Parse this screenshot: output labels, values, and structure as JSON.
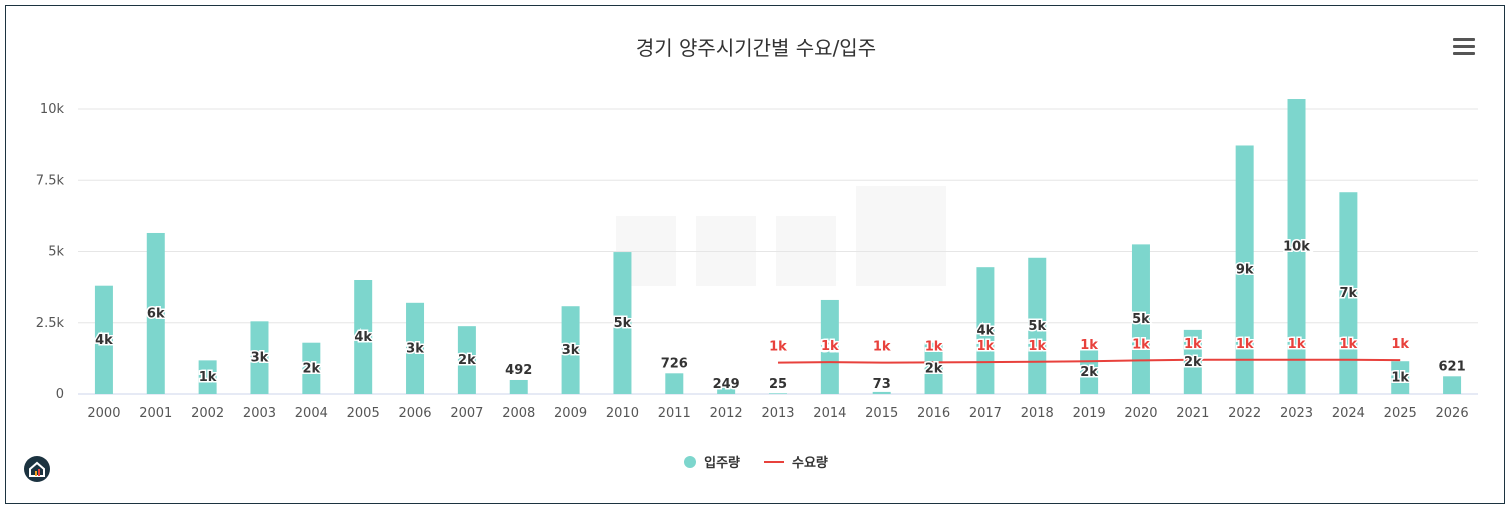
{
  "chart_data": {
    "type": "bar",
    "title": "경기 양주시기간별 수요/입주",
    "xlabel": "",
    "ylabel": "",
    "ylim": [
      0,
      10500
    ],
    "yticks": [
      0,
      2500,
      5000,
      7500,
      10000
    ],
    "ytick_labels": [
      "0",
      "2.5k",
      "5k",
      "7.5k",
      "10k"
    ],
    "categories": [
      "2000",
      "2001",
      "2002",
      "2003",
      "2004",
      "2005",
      "2006",
      "2007",
      "2008",
      "2009",
      "2010",
      "2011",
      "2012",
      "2013",
      "2014",
      "2015",
      "2016",
      "2017",
      "2018",
      "2019",
      "2020",
      "2021",
      "2022",
      "2023",
      "2024",
      "2025",
      "2026"
    ],
    "grid": true,
    "legend_position": "bottom-center",
    "series": [
      {
        "name": "입주량",
        "kind": "bar",
        "color": "#7dd6cd",
        "values": [
          3800,
          5650,
          1180,
          2550,
          1800,
          4000,
          3200,
          2380,
          492,
          3080,
          4980,
          726,
          249,
          25,
          3300,
          73,
          1800,
          4450,
          4780,
          1530,
          5250,
          2250,
          8720,
          10350,
          7080,
          1150,
          621
        ],
        "labels": [
          "4k",
          "6k",
          "1k",
          "3k",
          "2k",
          "4k",
          "3k",
          "2k",
          "492",
          "3k",
          "5k",
          "726",
          "249",
          "25",
          "3k",
          "73",
          "2k",
          "4k",
          "5k",
          "2k",
          "5k",
          "2k",
          "9k",
          "10k",
          "7k",
          "1k",
          "621"
        ]
      },
      {
        "name": "수요량",
        "kind": "line",
        "color": "#e8413c",
        "values": [
          null,
          null,
          null,
          null,
          null,
          null,
          null,
          null,
          null,
          null,
          null,
          null,
          null,
          1100,
          1120,
          1100,
          1110,
          1120,
          1130,
          1150,
          1180,
          1200,
          1200,
          1200,
          1200,
          1190,
          null
        ],
        "labels": [
          null,
          null,
          null,
          null,
          null,
          null,
          null,
          null,
          null,
          null,
          null,
          null,
          null,
          "1k",
          "1k",
          "1k",
          "1k",
          "1k",
          "1k",
          "1k",
          "1k",
          "1k",
          "1k",
          "1k",
          "1k",
          "1k",
          null
        ]
      }
    ]
  },
  "toolbar": {
    "menu_icon": "hamburger-menu-icon"
  },
  "logo": {
    "icon": "home-logo-icon"
  }
}
